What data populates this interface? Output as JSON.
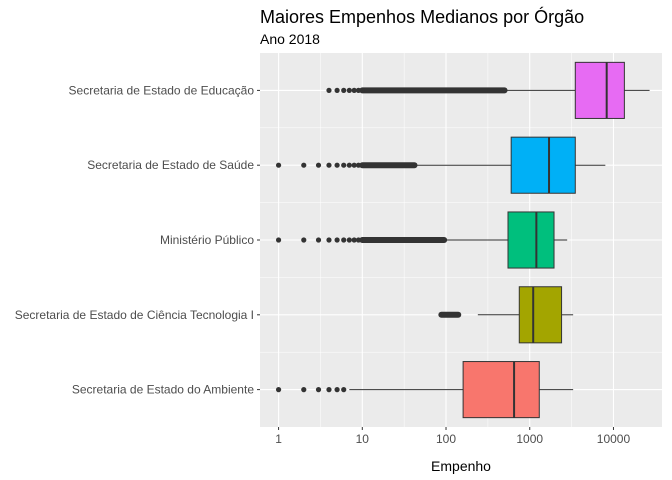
{
  "chart_data": {
    "type": "boxplot",
    "title": "Maiores Empenhos Medianos por Órgão",
    "subtitle": "Ano 2018",
    "xlabel": "Empenho",
    "ylabel": "",
    "x_scale": "log10",
    "xlim": [
      0.6,
      38000
    ],
    "x_ticks": [
      1,
      10,
      100,
      1000,
      10000
    ],
    "x_tick_labels": [
      "1",
      "10",
      "100",
      "1000",
      "10000"
    ],
    "grid": true,
    "legend": "none",
    "categories": [
      "Secretaria de Estado de Educação",
      "Secretaria de Estado de Saúde",
      "Ministério Público",
      "Secretaria de Estado de Ciência Tecnologia I",
      "Secretaria de Estado do Ambiente"
    ],
    "series": [
      {
        "category": "Secretaria de Estado de Educação",
        "color": "#E76BF3",
        "whisker_low": 520,
        "q1": 3500,
        "median": 8300,
        "q3": 13500,
        "whisker_high": 27000,
        "outliers": [
          4,
          5,
          6,
          7,
          8,
          9,
          10
        ],
        "outlier_band": [
          10,
          500
        ]
      },
      {
        "category": "Secretaria de Estado de Saúde",
        "color": "#00B0F6",
        "whisker_low": 45,
        "q1": 600,
        "median": 1700,
        "q3": 3500,
        "whisker_high": 8000,
        "outliers": [
          1,
          2,
          3,
          4,
          5,
          6,
          7,
          8,
          9
        ],
        "outlier_band": [
          10,
          42
        ]
      },
      {
        "category": "Ministério Público",
        "color": "#00BF7D",
        "whisker_low": 100,
        "q1": 550,
        "median": 1200,
        "q3": 1950,
        "whisker_high": 2800,
        "outliers": [
          1,
          2,
          3,
          4,
          5,
          6,
          7,
          8,
          9
        ],
        "outlier_band": [
          10,
          95
        ]
      },
      {
        "category": "Secretaria de Estado de Ciência Tecnologia I",
        "color": "#A3A500",
        "whisker_low": 240,
        "q1": 750,
        "median": 1100,
        "q3": 2400,
        "whisker_high": 3300,
        "outliers": [],
        "outlier_band": [
          88,
          140
        ]
      },
      {
        "category": "Secretaria de Estado do Ambiente",
        "color": "#F8766D",
        "whisker_low": 7,
        "q1": 160,
        "median": 650,
        "q3": 1300,
        "whisker_high": 3300,
        "outliers": [
          1,
          2,
          3,
          4,
          5,
          6
        ],
        "outlier_band": []
      }
    ]
  }
}
